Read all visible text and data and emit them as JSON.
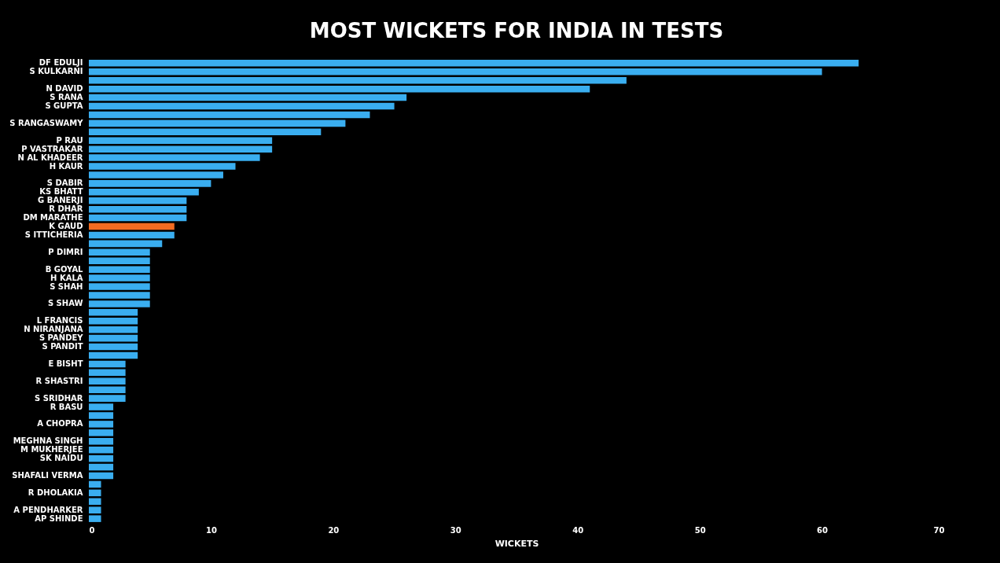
{
  "chart_data": {
    "type": "bar",
    "orientation": "horizontal",
    "title": "MOST WICKETS FOR INDIA IN TESTS",
    "xlabel": "WICKETS",
    "categories": [
      "DF EDULJI",
      "S KULKARNI",
      null,
      "N DAVID",
      "S RANA",
      "S GUPTA",
      null,
      "S RANGASWAMY",
      null,
      "P RAU",
      "P VASTRAKAR",
      "N AL KHADEER",
      "H KAUR",
      null,
      "S DABIR",
      "KS BHATT",
      "G BANERJI",
      "R DHAR",
      "DM MARATHE",
      "K GAUD",
      "S ITTICHERIA",
      null,
      "P DIMRI",
      null,
      "B GOYAL",
      "H KALA",
      "S SHAH",
      null,
      "S SHAW",
      null,
      "L FRANCIS",
      "N NIRANJANA",
      "S PANDEY",
      "S PANDIT",
      null,
      "E BISHT",
      null,
      "R SHASTRI",
      null,
      "S SRIDHAR",
      "R BASU",
      null,
      "A CHOPRA",
      null,
      "MEGHNA SINGH",
      "M MUKHERJEE",
      "SK NAIDU",
      null,
      "SHAFALI VERMA",
      null,
      "R DHOLAKIA",
      null,
      "A PENDHARKER",
      "AP SHINDE"
    ],
    "values": [
      63,
      60,
      44,
      41,
      26,
      25,
      23,
      21,
      19,
      15,
      15,
      14,
      12,
      11,
      10,
      9,
      8,
      8,
      8,
      7,
      7,
      6,
      5,
      5,
      5,
      5,
      5,
      5,
      5,
      4,
      4,
      4,
      4,
      4,
      4,
      3,
      3,
      3,
      3,
      3,
      2,
      2,
      2,
      2,
      2,
      2,
      2,
      2,
      2,
      1,
      1,
      1,
      1,
      1
    ],
    "colors": [
      "#3aaef0",
      "#3aaef0",
      "#3aaef0",
      "#3aaef0",
      "#3aaef0",
      "#3aaef0",
      "#3aaef0",
      "#3aaef0",
      "#3aaef0",
      "#3aaef0",
      "#3aaef0",
      "#3aaef0",
      "#3aaef0",
      "#3aaef0",
      "#3aaef0",
      "#3aaef0",
      "#3aaef0",
      "#3aaef0",
      "#3aaef0",
      "#f26b21",
      "#3aaef0",
      "#3aaef0",
      "#3aaef0",
      "#3aaef0",
      "#3aaef0",
      "#3aaef0",
      "#3aaef0",
      "#3aaef0",
      "#3aaef0",
      "#3aaef0",
      "#3aaef0",
      "#3aaef0",
      "#3aaef0",
      "#3aaef0",
      "#3aaef0",
      "#3aaef0",
      "#3aaef0",
      "#3aaef0",
      "#3aaef0",
      "#3aaef0",
      "#3aaef0",
      "#3aaef0",
      "#3aaef0",
      "#3aaef0",
      "#3aaef0",
      "#3aaef0",
      "#3aaef0",
      "#3aaef0",
      "#3aaef0",
      "#3aaef0",
      "#3aaef0",
      "#3aaef0",
      "#3aaef0",
      "#3aaef0"
    ],
    "xlim": [
      0,
      70
    ],
    "xticks": [
      0,
      10,
      20,
      30,
      40,
      50,
      60,
      70
    ],
    "grid": false
  }
}
